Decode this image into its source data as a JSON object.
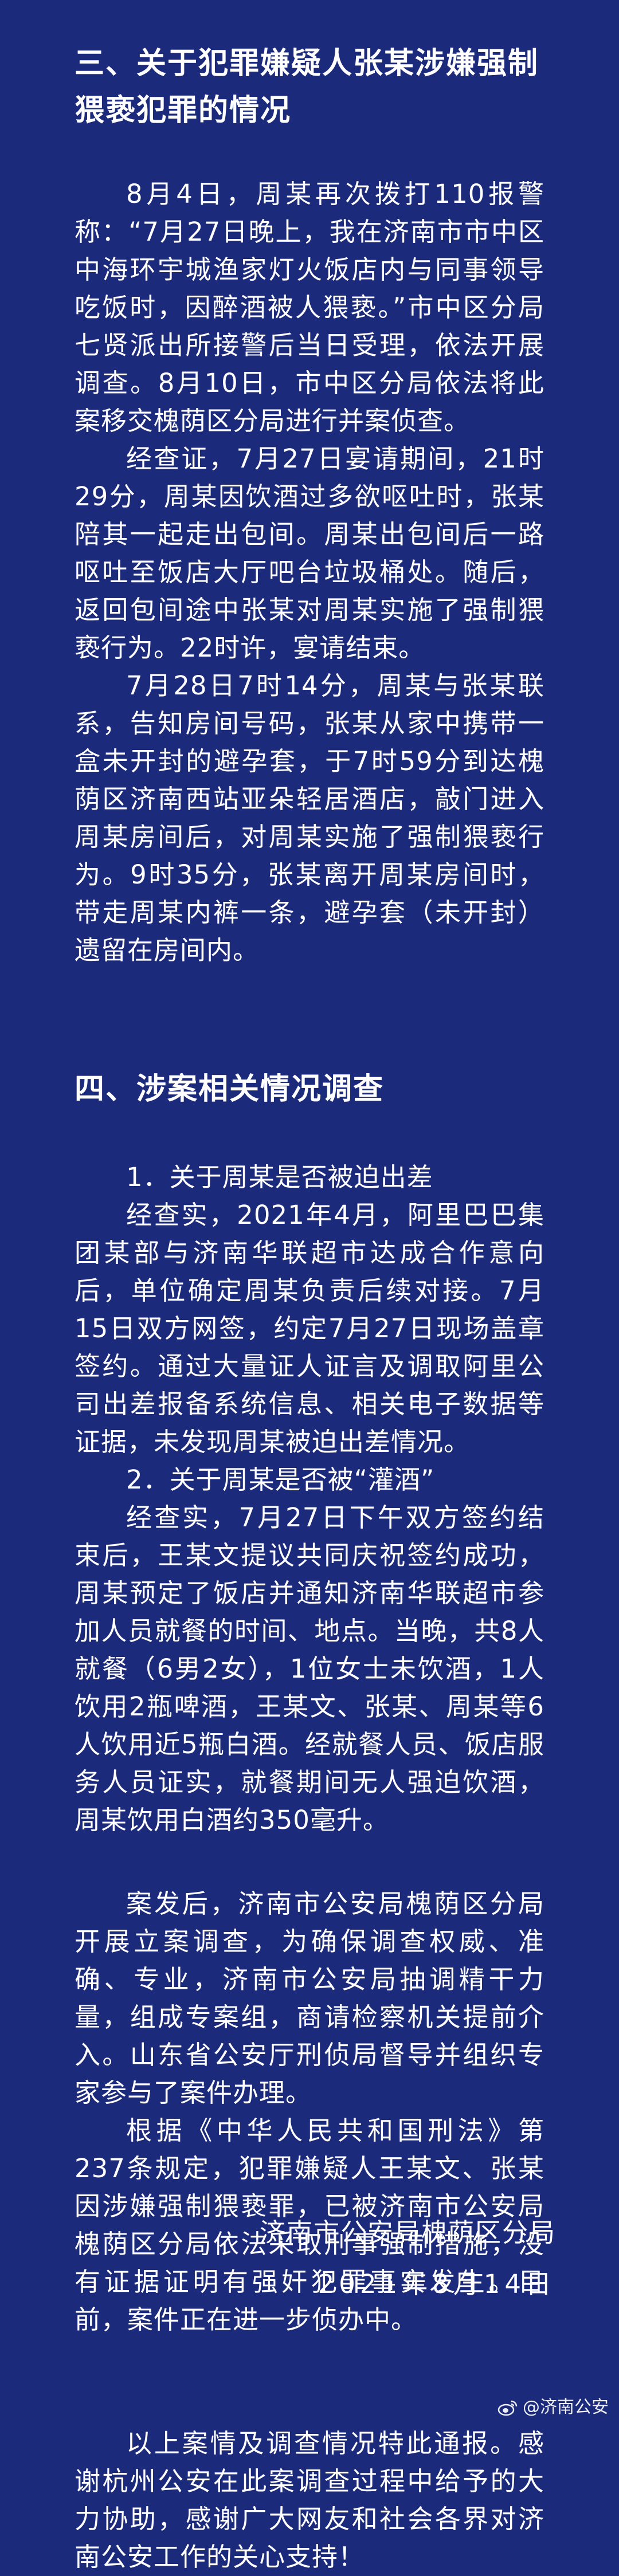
{
  "section3": {
    "heading": "三、关于犯罪嫌疑人张某涉嫌强制猥亵犯罪的情况",
    "paragraphs": [
      "8月4日，周某再次拨打110报警称：“7月27日晚上，我在济南市市中区中海环宇城渔家灯火饭店内与同事领导吃饭时，因醉酒被人猥亵。”市中区分局七贤派出所接警后当日受理，依法开展调查。8月10日，市中区分局依法将此案移交槐荫区分局进行并案侦查。",
      "经查证，7月27日宴请期间，21时29分，周某因饮酒过多欲呕吐时，张某陪其一起走出包间。周某出包间后一路呕吐至饭店大厅吧台垃圾桶处。随后，返回包间途中张某对周某实施了强制猥亵行为。22时许，宴请结束。",
      "7月28日7时14分，周某与张某联系，告知房间号码，张某从家中携带一盒未开封的避孕套，于7时59分到达槐荫区济南西站亚朵轻居酒店，敲门进入周某房间后，对周某实施了强制猥亵行为。9时35分，张某离开周某房间时，带走周某内裤一条，避孕套（未开封）遗留在房间内。"
    ]
  },
  "section4": {
    "heading": "四、涉案相关情况调查",
    "sub1_title": "1．关于周某是否被迫出差",
    "sub1_body": "经查实，2021年4月，阿里巴巴集团某部与济南华联超市达成合作意向后，单位确定周某负责后续对接。7月15日双方网签，约定7月27日现场盖章签约。通过大量证人证言及调取阿里公司出差报备系统信息、相关电子数据等证据，未发现周某被迫出差情况。",
    "sub2_title": "2．关于周某是否被“灌酒”",
    "sub2_body": "经查实，7月27日下午双方签约结束后，王某文提议共同庆祝签约成功，周某预定了饭店并通知济南华联超市参加人员就餐的时间、地点。当晚，共8人就餐（6男2女），1位女士未饮酒，1人饮用2瓶啤酒，王某文、张某、周某等6人饮用近5瓶白酒。经就餐人员、饭店服务人员证实，就餐期间无人强迫饮酒，周某饮用白酒约350毫升。"
  },
  "closing": {
    "paragraphs": [
      "案发后，济南市公安局槐荫区分局开展立案调查，为确保调查权威、准确、专业，济南市公安局抽调精干力量，组成专案组，商请检察机关提前介入。山东省公安厅刑侦局督导并组织专家参与了案件办理。",
      "根据《中华人民共和国刑法》第237条规定，犯罪嫌疑人王某文、张某因涉嫌强制猥亵罪，已被济南市公安局槐荫区分局依法采取刑事强制措施，没有证据证明有强奸犯罪事实发生。目前，案件正在进一步侦办中。"
    ]
  },
  "notice": {
    "paragraph": "以上案情及调查情况特此通报。感谢杭州公安在此案调查过程中给予的大力协助，感谢广大网友和社会各界对济南公安工作的关心支持！"
  },
  "signature": {
    "org": "济南市公安局槐荫区分局",
    "date": "2021年8月14日"
  },
  "watermark": {
    "text": "@济南公安",
    "icon": "weibo-icon"
  }
}
